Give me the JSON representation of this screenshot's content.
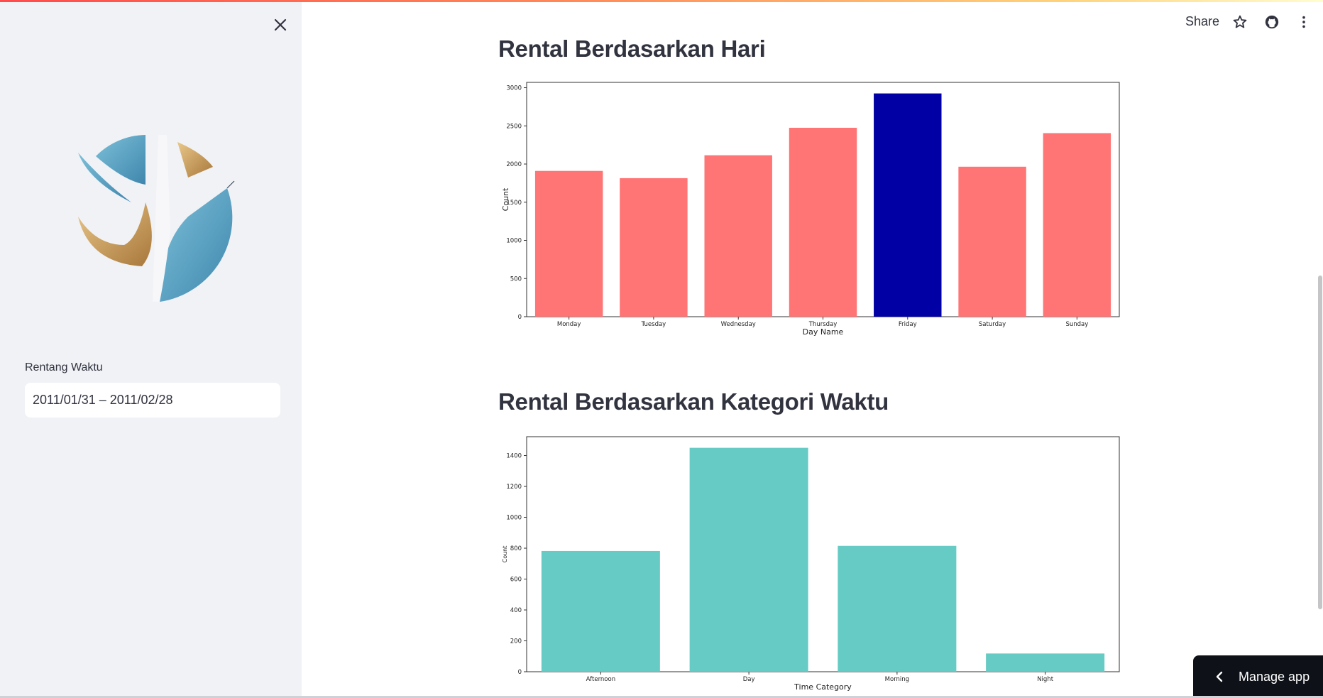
{
  "header": {
    "share_label": "Share",
    "icons": [
      "star-icon",
      "github-icon",
      "kebab-menu-icon"
    ]
  },
  "sidebar": {
    "close_icon": "close-icon",
    "range_label": "Rentang Waktu",
    "range_value": "2011/01/31 – 2011/02/28"
  },
  "sections": [
    {
      "title": "Rental Berdasarkan Hari"
    },
    {
      "title": "Rental Berdasarkan Kategori Waktu"
    }
  ],
  "manage": {
    "label": "Manage app"
  },
  "colors": {
    "bar_default": "#ff7474",
    "bar_highlight": "#0000a4",
    "bar_teal": "#66cbc4"
  },
  "chart_data": [
    {
      "type": "bar",
      "categories": [
        "Monday",
        "Tuesday",
        "Wednesday",
        "Thursday",
        "Friday",
        "Saturday",
        "Sunday"
      ],
      "values": [
        1910,
        1815,
        2115,
        2475,
        2925,
        1965,
        2405
      ],
      "highlight": "Friday",
      "xlabel": "Day Name",
      "ylabel": "Count",
      "yticks": [
        0,
        500,
        1000,
        1500,
        2000,
        2500,
        3000
      ],
      "ylim": [
        0,
        3070
      ]
    },
    {
      "type": "bar",
      "categories": [
        "Afternoon",
        "Day",
        "Morning",
        "Night"
      ],
      "values": [
        782,
        1450,
        815,
        118
      ],
      "xlabel": "Time Category",
      "ylabel": "Count",
      "yticks": [
        0,
        200,
        400,
        600,
        800,
        1000,
        1200,
        1400
      ],
      "ylim": [
        0,
        1522
      ]
    }
  ]
}
